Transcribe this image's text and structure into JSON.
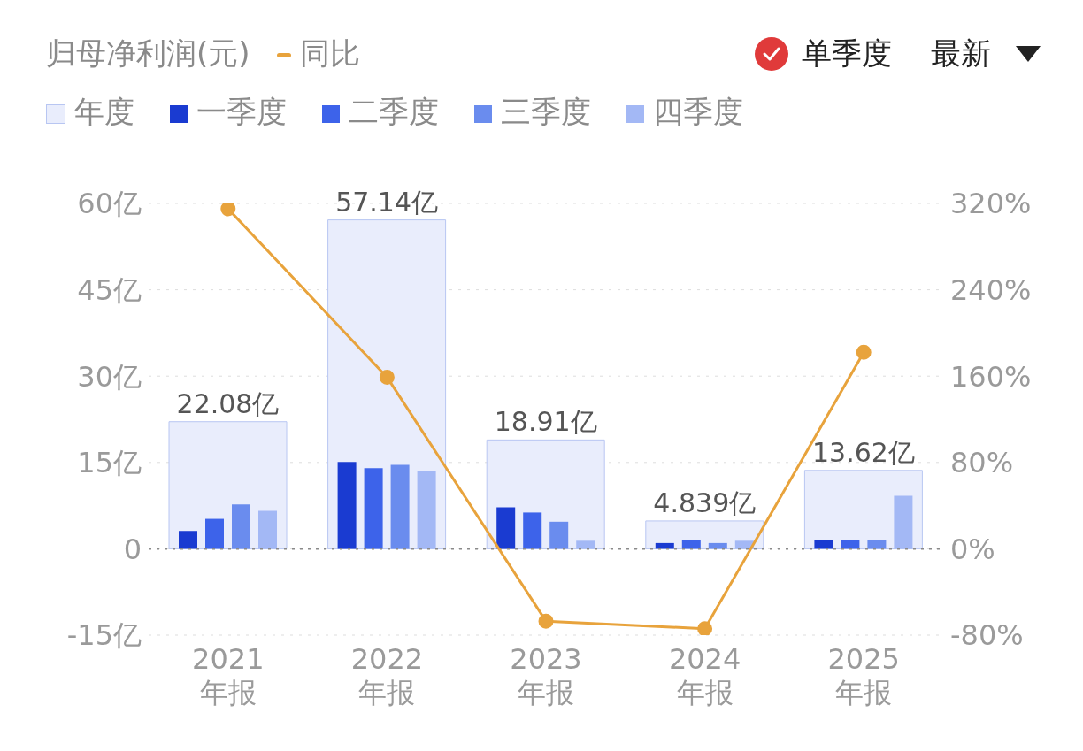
{
  "chart_data": {
    "type": "bar",
    "title": "归母净利润(元)",
    "categories": [
      "2021\n年报",
      "2022\n年报",
      "2023\n年报",
      "2024\n年报",
      "2025\n年报"
    ],
    "series": [
      {
        "name": "年度",
        "color": "#e9edfc",
        "values": [
          22.08,
          57.14,
          18.91,
          4.839,
          13.62
        ],
        "value_labels": [
          "22.08亿",
          "57.14亿",
          "18.91亿",
          "4.839亿",
          "13.62亿"
        ]
      },
      {
        "name": "一季度",
        "color": "#1a3bd1",
        "values": [
          3.1,
          15.1,
          7.2,
          1.0,
          1.5
        ]
      },
      {
        "name": "二季度",
        "color": "#3d63ea",
        "values": [
          5.2,
          14.0,
          6.3,
          1.5,
          1.5
        ]
      },
      {
        "name": "三季度",
        "color": "#6a8cee",
        "values": [
          7.7,
          14.6,
          4.7,
          1.0,
          1.5
        ]
      },
      {
        "name": "四季度",
        "color": "#a3b8f5",
        "values": [
          6.6,
          13.5,
          1.4,
          1.4,
          9.2
        ]
      },
      {
        "name": "同比",
        "type": "line",
        "axis": "y2",
        "color": "#e8a33c",
        "values": [
          315,
          159,
          -67,
          -74,
          182
        ]
      }
    ],
    "ylim": [
      -15,
      60
    ],
    "yticks": [
      {
        "value": -15,
        "label": "-15亿"
      },
      0,
      {
        "value": 15,
        "label": "15亿"
      },
      {
        "value": 30,
        "label": "30亿"
      },
      {
        "value": 45,
        "label": "45亿"
      },
      {
        "value": 60,
        "label": "60亿"
      }
    ],
    "y2lim": [
      -80,
      320
    ],
    "y2ticks": [
      {
        "value": -80,
        "label": "-80%"
      },
      {
        "value": 0,
        "label": "0%"
      },
      {
        "value": 80,
        "label": "80%"
      },
      {
        "value": 160,
        "label": "160%"
      },
      {
        "value": 240,
        "label": "240%"
      },
      {
        "value": 320,
        "label": "320%"
      }
    ],
    "ref_lines": [
      {
        "axis": "y",
        "value": 0,
        "color": "#8a8a8a",
        "line_style": "dotted"
      }
    ],
    "grid": "y",
    "legend": "top left",
    "marker": "circle",
    "annotations": [
      "单季度",
      "最新"
    ]
  }
}
